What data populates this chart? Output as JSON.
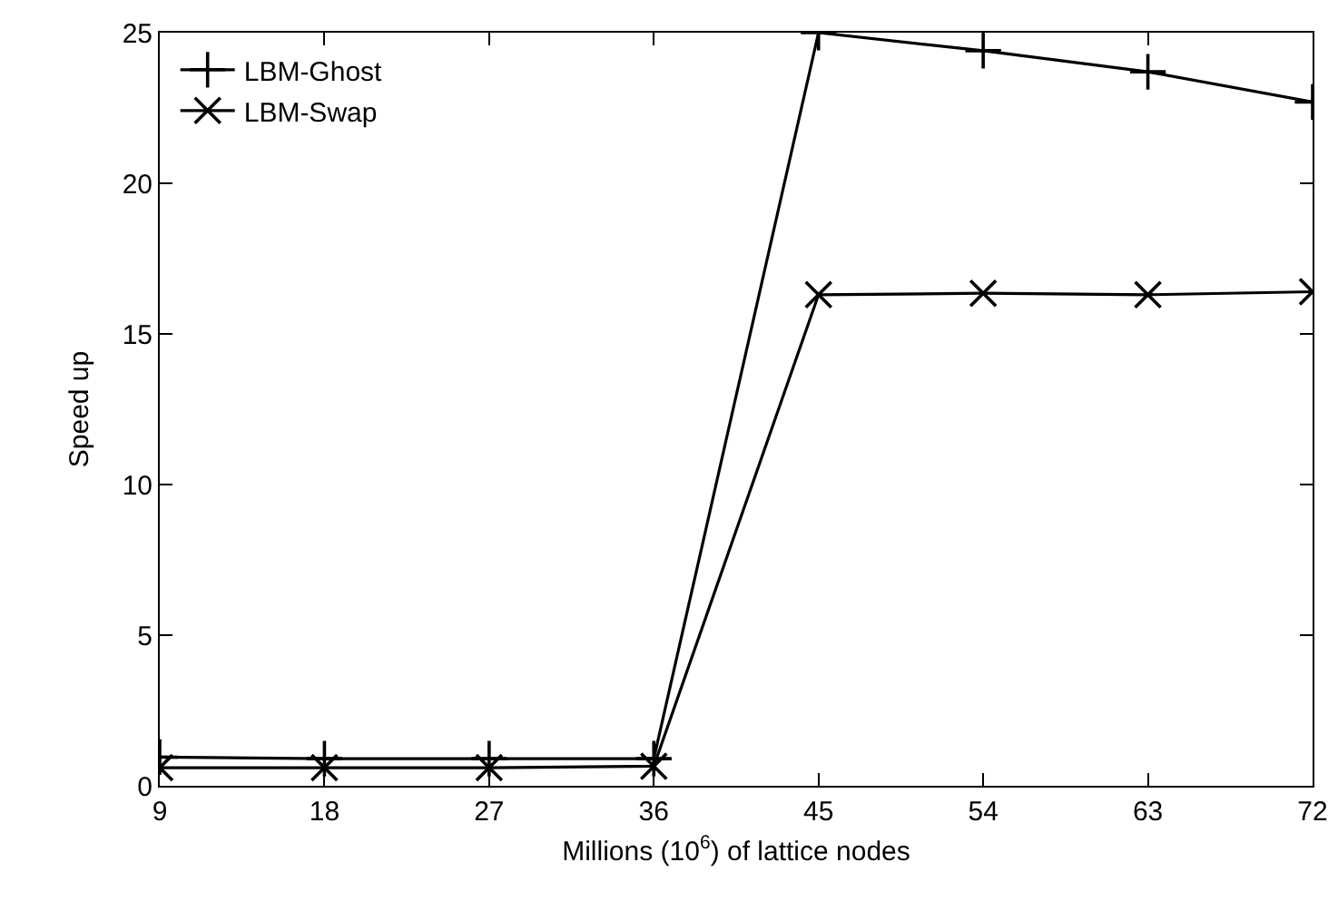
{
  "chart_data": {
    "type": "line",
    "xlabel": "Millions (10$^{6}$) of lattice nodes",
    "ylabel": "Speed up",
    "x": [
      9,
      18,
      27,
      36,
      45,
      54,
      63,
      72
    ],
    "series": [
      {
        "name": "LBM-Ghost",
        "color": "#000000",
        "marker": "cross",
        "values": [
          0.95,
          0.9,
          0.9,
          0.9,
          25,
          24.4,
          23.7,
          22.7
        ]
      },
      {
        "name": "LBM-Swap",
        "color": "#000000",
        "marker": "x",
        "values": [
          0.6,
          0.6,
          0.6,
          0.65,
          16.3,
          16.35,
          16.3,
          16.4
        ]
      }
    ],
    "xlim": [
      9,
      72
    ],
    "xticks": [
      9,
      18,
      27,
      36,
      45,
      54,
      63,
      72
    ],
    "ylim": [
      0,
      25
    ],
    "yticks": [
      0,
      5,
      10,
      15,
      20,
      25
    ],
    "grid": false,
    "legend": "top left",
    "line_style": "solid"
  }
}
